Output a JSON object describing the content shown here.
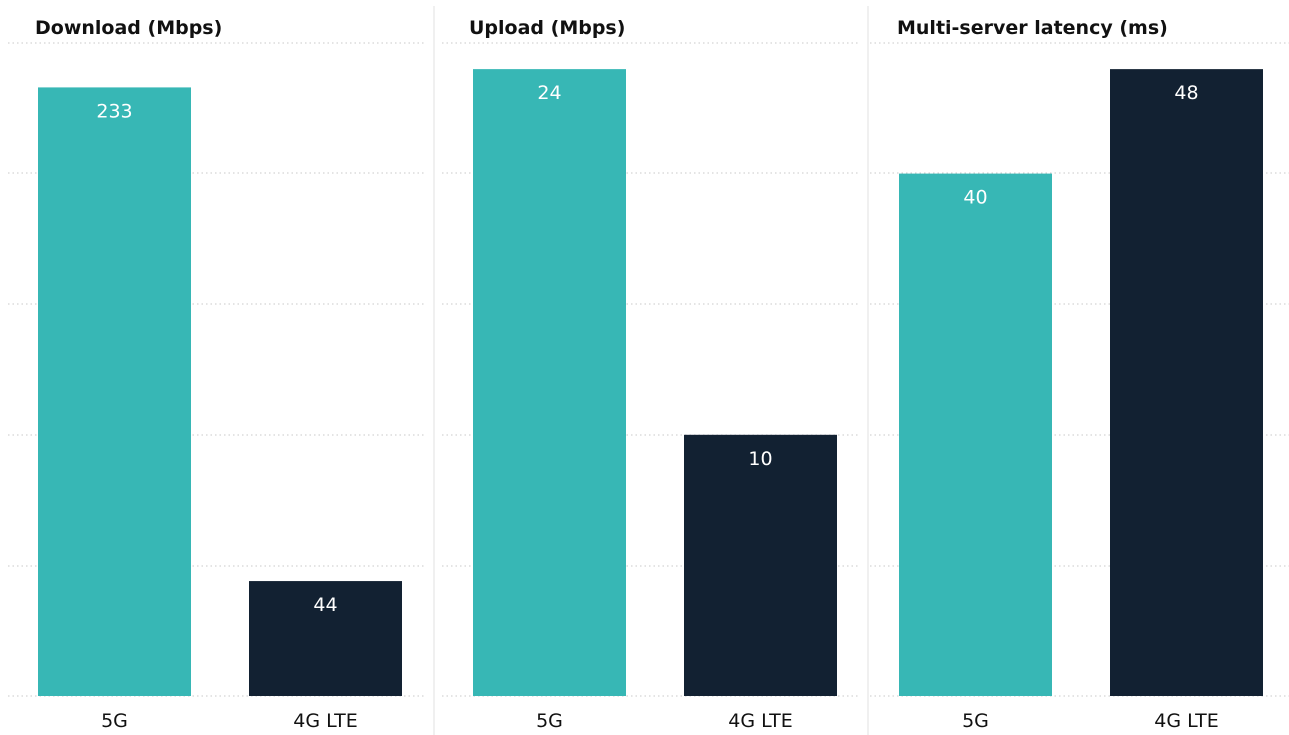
{
  "chart_data": [
    {
      "type": "bar",
      "title": "Download (Mbps)",
      "categories": [
        "5G",
        "4G LTE"
      ],
      "values": [
        233,
        44
      ],
      "value_labels": [
        "233",
        "44"
      ],
      "ylim": [
        0,
        250
      ],
      "grid": true
    },
    {
      "type": "bar",
      "title": "Upload (Mbps)",
      "categories": [
        "5G",
        "4G LTE"
      ],
      "values": [
        24,
        10
      ],
      "value_labels": [
        "24",
        "10"
      ],
      "ylim": [
        0,
        25
      ],
      "grid": true
    },
    {
      "type": "bar",
      "title": "Multi-server latency (ms)",
      "categories": [
        "5G",
        "4G LTE"
      ],
      "values": [
        40,
        48
      ],
      "value_labels": [
        "40",
        "48"
      ],
      "ylim": [
        0,
        50
      ],
      "grid": true
    }
  ],
  "colors": {
    "five_g": "#37b7b5",
    "lte": "#122132",
    "grid": "#c8c8c8",
    "divider": "#e2e2e2",
    "title_text": "#111111",
    "bar_text": "#ffffff"
  }
}
